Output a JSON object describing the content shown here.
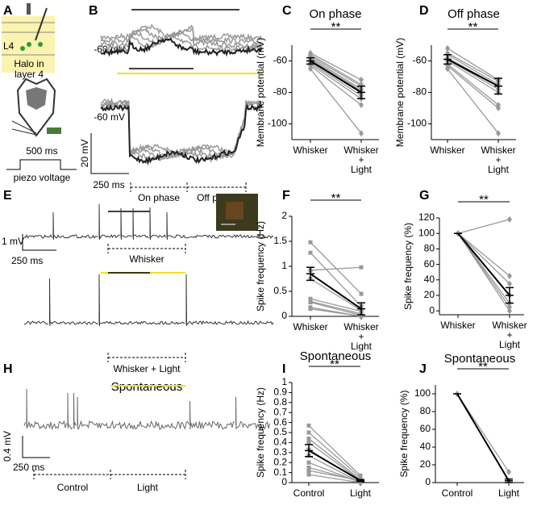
{
  "panels": {
    "a": {
      "letter": "A",
      "layer": "L4",
      "label": "Halo in layer 4",
      "duration": "500 ms",
      "stimulus": "piezo voltage"
    },
    "b": {
      "letter": "B",
      "vm_top": "-60 mV",
      "vm_bottom": "-60 mV",
      "scale_y": "20 mV",
      "scale_x": "250 ms",
      "on": "On phase",
      "off": "Off phase"
    },
    "e": {
      "letter": "E",
      "scale_y": "1 mV",
      "scale_x": "250 ms",
      "top": "Whisker",
      "bottom": "Whisker + Light"
    },
    "h": {
      "letter": "H",
      "title": "Spontaneous",
      "scale_y": "0.4 mV",
      "scale_x": "250 ms",
      "control": "Control",
      "light": "Light"
    }
  },
  "chart_data": [
    {
      "type": "paired",
      "letter": "C",
      "title": "On phase",
      "y_label": "Membrane potential (mV)",
      "categories": [
        "Whisker",
        "Whisker + Light"
      ],
      "significance": "**",
      "ylim": [
        -110,
        -50
      ],
      "yticks": [
        -60,
        -80,
        -100
      ],
      "marker": "diamond",
      "series": [
        {
          "color": "#999999",
          "values": [
            -55,
            -72
          ]
        },
        {
          "color": "#999999",
          "values": [
            -56,
            -75
          ]
        },
        {
          "color": "#999999",
          "values": [
            -57,
            -76
          ]
        },
        {
          "color": "#999999",
          "values": [
            -58,
            -78
          ]
        },
        {
          "color": "#999999",
          "values": [
            -59,
            -79
          ]
        },
        {
          "color": "#999999",
          "values": [
            -60,
            -80
          ]
        },
        {
          "color": "#999999",
          "values": [
            -61,
            -82
          ]
        },
        {
          "color": "#999999",
          "values": [
            -62,
            -84
          ]
        },
        {
          "color": "#999999",
          "values": [
            -63,
            -88
          ]
        },
        {
          "color": "#999999",
          "values": [
            -65,
            -106
          ]
        }
      ],
      "mean": {
        "color": "#000000",
        "values": [
          -60,
          -80
        ],
        "errors": [
          2,
          4
        ]
      }
    },
    {
      "type": "paired",
      "letter": "D",
      "title": "Off phase",
      "y_label": "Membrane potential (mV)",
      "categories": [
        "Whisker",
        "Whisker + Light"
      ],
      "significance": "**",
      "ylim": [
        -110,
        -50
      ],
      "yticks": [
        -60,
        -80,
        -100
      ],
      "marker": "diamond",
      "series": [
        {
          "color": "#999999",
          "values": [
            -52,
            -72
          ]
        },
        {
          "color": "#999999",
          "values": [
            -55,
            -73
          ]
        },
        {
          "color": "#999999",
          "values": [
            -56,
            -75
          ]
        },
        {
          "color": "#999999",
          "values": [
            -58,
            -76
          ]
        },
        {
          "color": "#999999",
          "values": [
            -59,
            -78
          ]
        },
        {
          "color": "#999999",
          "values": [
            -60,
            -80
          ]
        },
        {
          "color": "#999999",
          "values": [
            -62,
            -88
          ]
        },
        {
          "color": "#999999",
          "values": [
            -63,
            -90
          ]
        },
        {
          "color": "#999999",
          "values": [
            -65,
            -106
          ]
        }
      ],
      "mean": {
        "color": "#000000",
        "values": [
          -59,
          -76
        ],
        "errors": [
          3,
          5
        ]
      }
    },
    {
      "type": "paired",
      "letter": "F",
      "y_label": "Spike frequency (Hz)",
      "categories": [
        "Whisker",
        "Whisker + Light"
      ],
      "significance": "**",
      "ylim": [
        0,
        2
      ],
      "yticks": [
        0,
        0.5,
        1,
        1.5,
        2
      ],
      "marker": "square",
      "series": [
        {
          "color": "#999999",
          "values": [
            1.48,
            0.45
          ]
        },
        {
          "color": "#999999",
          "values": [
            1.27,
            0.2
          ]
        },
        {
          "color": "#999999",
          "values": [
            0.92,
            0.98
          ]
        },
        {
          "color": "#999999",
          "values": [
            0.75,
            0.12
          ]
        },
        {
          "color": "#999999",
          "values": [
            0.35,
            0.1
          ]
        },
        {
          "color": "#999999",
          "values": [
            0.3,
            0.05
          ]
        },
        {
          "color": "#999999",
          "values": [
            0.28,
            0.02
          ]
        },
        {
          "color": "#999999",
          "values": [
            0.18,
            0
          ]
        },
        {
          "color": "#999999",
          "values": [
            0.15,
            0
          ]
        }
      ],
      "mean": {
        "color": "#000000",
        "values": [
          0.85,
          0.15
        ],
        "errors": [
          0.13,
          0.12
        ]
      }
    },
    {
      "type": "paired",
      "letter": "G",
      "y_label": "Spike frequency (%)",
      "categories": [
        "Whisker",
        "Whisker + Light"
      ],
      "significance": "**",
      "ylim": [
        -5,
        120
      ],
      "yticks": [
        0,
        20,
        40,
        60,
        80,
        100,
        120
      ],
      "marker": "diamond",
      "series": [
        {
          "color": "#999999",
          "values": [
            100,
            118
          ]
        },
        {
          "color": "#999999",
          "values": [
            100,
            45
          ]
        },
        {
          "color": "#999999",
          "values": [
            100,
            35
          ]
        },
        {
          "color": "#999999",
          "values": [
            100,
            20
          ]
        },
        {
          "color": "#999999",
          "values": [
            100,
            10
          ]
        },
        {
          "color": "#999999",
          "values": [
            100,
            5
          ]
        },
        {
          "color": "#999999",
          "values": [
            100,
            0
          ]
        }
      ],
      "mean": {
        "color": "#000000",
        "values": [
          100,
          20
        ],
        "errors": [
          0,
          10
        ]
      }
    },
    {
      "type": "paired",
      "letter": "I",
      "title": "Spontaneous",
      "y_label": "Spike frequency (Hz)",
      "categories": [
        "Control",
        "Light"
      ],
      "significance": "**",
      "ylim": [
        0,
        1
      ],
      "yticks": [
        0,
        0.1,
        0.2,
        0.3,
        0.4,
        0.5,
        0.6,
        0.7,
        0.8,
        0.9,
        1
      ],
      "marker": "square",
      "series": [
        {
          "color": "#999999",
          "values": [
            0.57,
            0.07
          ]
        },
        {
          "color": "#999999",
          "values": [
            0.5,
            0.05
          ]
        },
        {
          "color": "#999999",
          "values": [
            0.44,
            0.03
          ]
        },
        {
          "color": "#999999",
          "values": [
            0.4,
            0.02
          ]
        },
        {
          "color": "#999999",
          "values": [
            0.33,
            0.01
          ]
        },
        {
          "color": "#999999",
          "values": [
            0.27,
            0
          ]
        },
        {
          "color": "#999999",
          "values": [
            0.2,
            0
          ]
        },
        {
          "color": "#999999",
          "values": [
            0.15,
            0.01
          ]
        },
        {
          "color": "#999999",
          "values": [
            0.12,
            0.02
          ]
        },
        {
          "color": "#999999",
          "values": [
            0.08,
            0
          ]
        }
      ],
      "mean": {
        "color": "#000000",
        "values": [
          0.32,
          0.02
        ],
        "errors": [
          0.06,
          0.01
        ]
      }
    },
    {
      "type": "paired",
      "letter": "J",
      "title": "Spontaneous",
      "y_label": "Spike frequency (%)",
      "categories": [
        "Control",
        "Light"
      ],
      "significance": "**",
      "ylim": [
        0,
        110
      ],
      "yticks": [
        0,
        20,
        40,
        60,
        80,
        100
      ],
      "marker": "diamond",
      "series": [
        {
          "color": "#999999",
          "values": [
            100,
            12
          ]
        },
        {
          "color": "#999999",
          "values": [
            100,
            2
          ]
        }
      ],
      "mean": {
        "color": "#000000",
        "values": [
          100,
          2
        ],
        "errors": [
          0,
          2
        ]
      }
    }
  ]
}
